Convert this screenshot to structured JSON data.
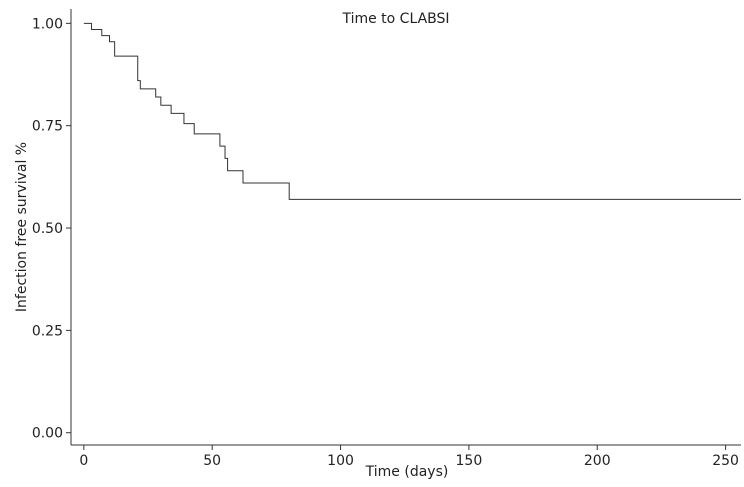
{
  "chart_data": {
    "type": "line",
    "step": true,
    "title": "Time to CLABSI",
    "xlabel": "Time (days)",
    "ylabel": "Infection free survival %",
    "xlim": [
      -5,
      256
    ],
    "ylim": [
      -0.03,
      1.035
    ],
    "xticks": [
      0,
      50,
      100,
      150,
      200,
      250
    ],
    "xtick_labels": [
      "0",
      "50",
      "100",
      "150",
      "200",
      "250"
    ],
    "yticks": [
      0.0,
      0.25,
      0.5,
      0.75,
      1.0
    ],
    "ytick_labels": [
      "0.00",
      "0.25",
      "0.50",
      "0.75",
      "1.00"
    ],
    "grid": false,
    "legend": "none",
    "series": [
      {
        "color": "#333333",
        "x": [
          0,
          3,
          7,
          10,
          12,
          21,
          22,
          28,
          30,
          34,
          39,
          43,
          53,
          55,
          56,
          62,
          80,
          256
        ],
        "y": [
          1.0,
          0.985,
          0.97,
          0.955,
          0.92,
          0.86,
          0.84,
          0.82,
          0.8,
          0.78,
          0.755,
          0.73,
          0.7,
          0.67,
          0.64,
          0.61,
          0.57,
          0.57
        ]
      }
    ]
  }
}
